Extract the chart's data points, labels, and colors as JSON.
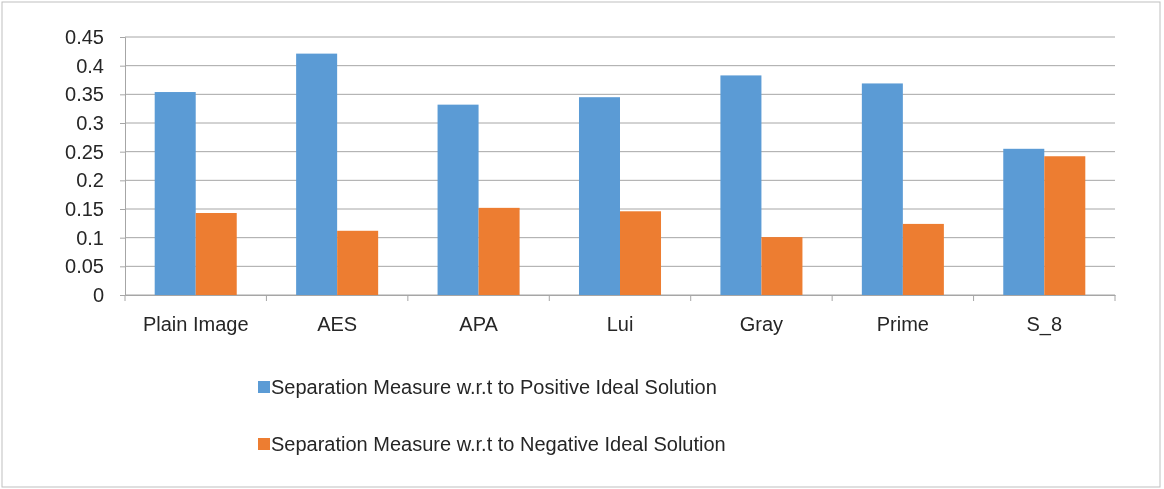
{
  "chart_data": {
    "type": "bar",
    "categories": [
      "Plain Image",
      "AES",
      "APA",
      "Lui",
      "Gray",
      "Prime",
      "S_8"
    ],
    "series": [
      {
        "name": "Separation Measure w.r.t to Positive Ideal Solution",
        "color": "#5b9bd5",
        "values": [
          0.354,
          0.421,
          0.332,
          0.345,
          0.383,
          0.369,
          0.255
        ]
      },
      {
        "name": "Separation Measure w.r.t to Negative Ideal Solution",
        "color": "#ed7d31",
        "values": [
          0.143,
          0.112,
          0.152,
          0.146,
          0.101,
          0.124,
          0.242
        ]
      }
    ],
    "ylim": [
      0,
      0.45
    ],
    "yticks": [
      0,
      0.05,
      0.1,
      0.15,
      0.2,
      0.25,
      0.3,
      0.35,
      0.4,
      0.45
    ],
    "grid": "y",
    "legend": "bottom"
  }
}
